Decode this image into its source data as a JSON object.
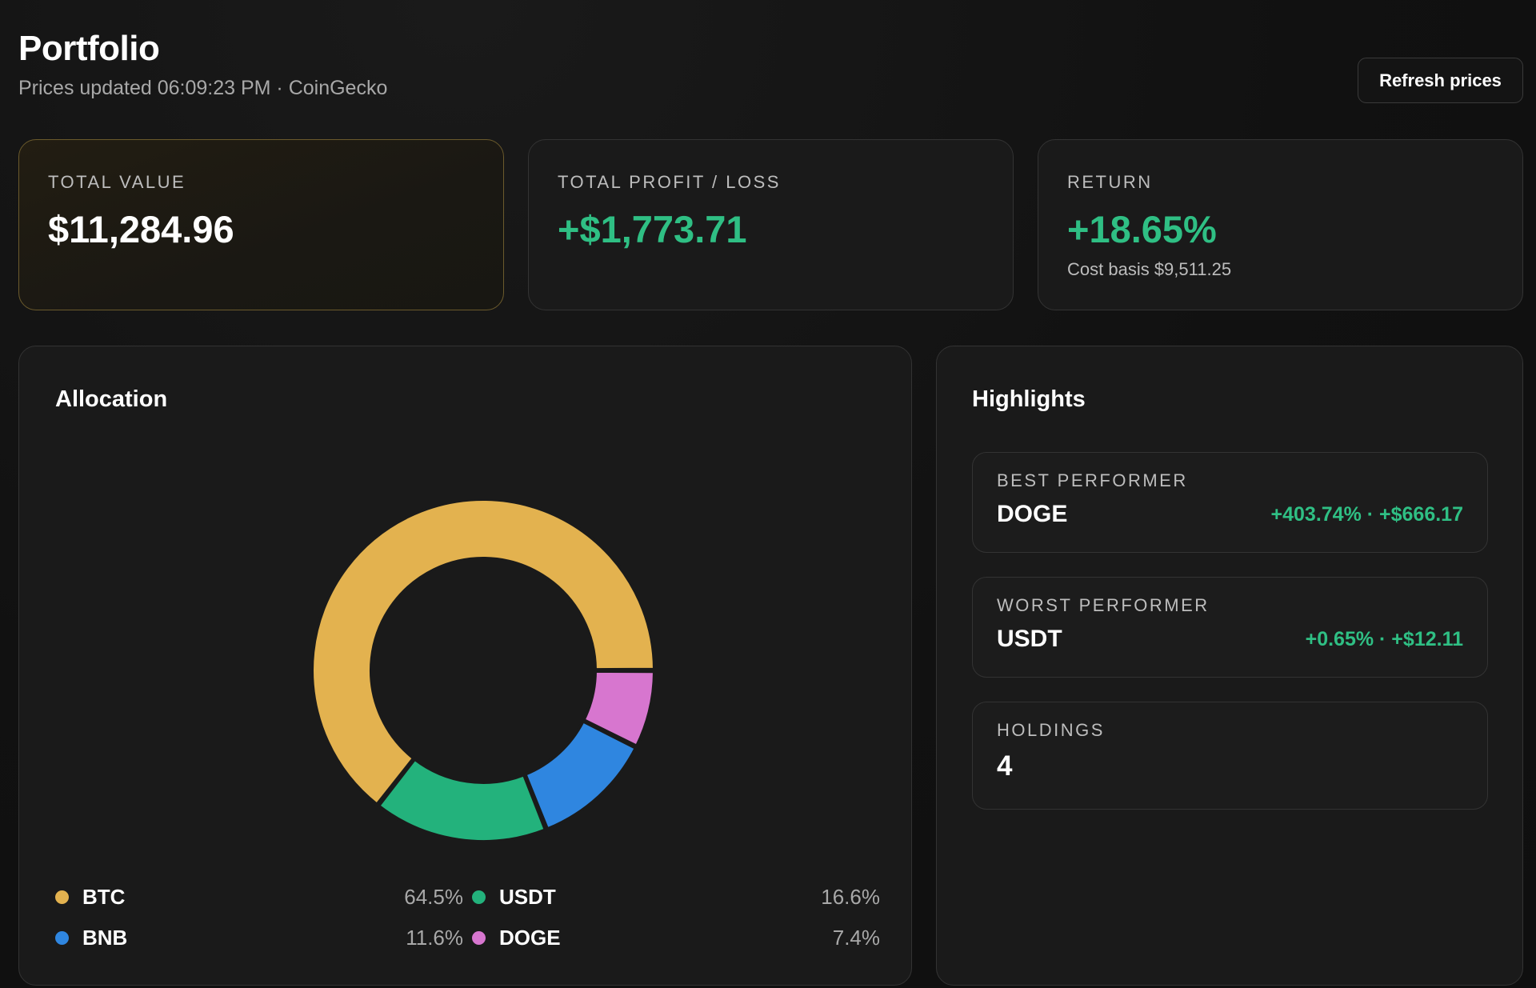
{
  "header": {
    "title": "Portfolio",
    "subtitle": "Prices updated 06:09:23 PM · CoinGecko",
    "refresh_label": "Refresh prices"
  },
  "stats": {
    "total_value": {
      "label": "TOTAL VALUE",
      "value": "$11,284.96"
    },
    "total_pl": {
      "label": "TOTAL PROFIT / LOSS",
      "value": "+$1,773.71"
    },
    "return": {
      "label": "RETURN",
      "value": "+18.65%",
      "note": "Cost basis $9,511.25"
    }
  },
  "allocation": {
    "title": "Allocation",
    "legend": [
      {
        "name": "BTC",
        "pct": "64.5%"
      },
      {
        "name": "USDT",
        "pct": "16.6%"
      },
      {
        "name": "BNB",
        "pct": "11.6%"
      },
      {
        "name": "DOGE",
        "pct": "7.4%"
      }
    ]
  },
  "highlights": {
    "title": "Highlights",
    "best": {
      "label": "BEST PERFORMER",
      "coin": "DOGE",
      "delta": "+403.74% · +$666.17"
    },
    "worst": {
      "label": "WORST PERFORMER",
      "coin": "USDT",
      "delta": "+0.65% · +$12.11"
    },
    "holdings": {
      "label": "HOLDINGS",
      "count": "4"
    }
  },
  "chart_data": {
    "type": "pie",
    "categories": [
      "BTC",
      "USDT",
      "BNB",
      "DOGE"
    ],
    "values": [
      64.5,
      16.6,
      11.6,
      7.4
    ],
    "colors": [
      "#e3b24f",
      "#23b27c",
      "#2f86e0",
      "#d776cf"
    ],
    "title": "Allocation"
  }
}
